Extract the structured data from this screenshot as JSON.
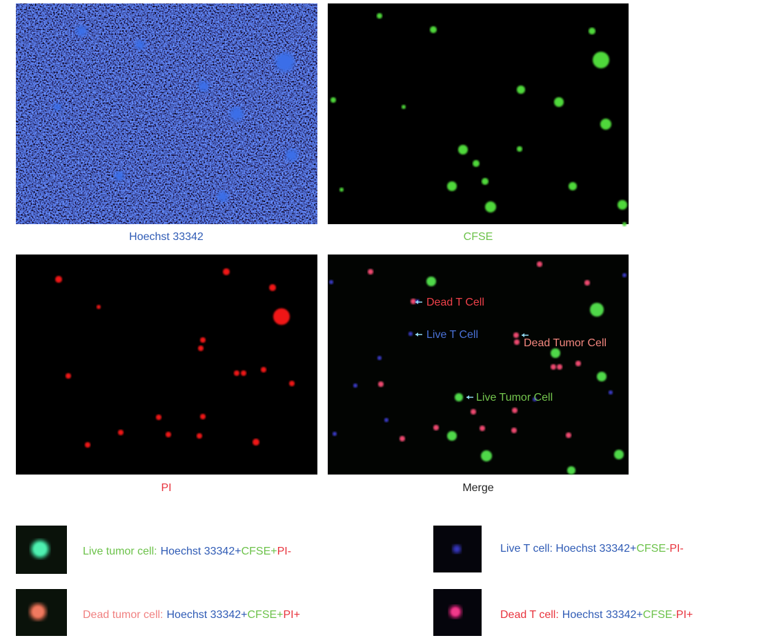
{
  "panels": [
    {
      "label": "Hoechst 33342",
      "color": "#2f5bb5"
    },
    {
      "label": "CFSE",
      "color": "#6cc24a"
    },
    {
      "label": "PI",
      "color": "#e8323c"
    },
    {
      "label": "Merge",
      "color": "#222222"
    }
  ],
  "annotations": [
    {
      "text": "Dead T Cell",
      "color": "#f0414a"
    },
    {
      "text": "Live T Cell",
      "color": "#4a72d8"
    },
    {
      "text": "Dead Tumor Cell",
      "color": "#f4877f"
    },
    {
      "text": "Live Tumor Cell",
      "color": "#74c64e"
    }
  ],
  "legend": [
    {
      "segments": [
        {
          "text": "Live tumor cell:",
          "color": "#6cc24a"
        },
        {
          "text": "Hoechst 33342+",
          "color": "#2f5bb5"
        },
        {
          "text": "CFSE+",
          "color": "#6cc24a"
        },
        {
          "text": "PI-",
          "color": "#e8323c"
        }
      ]
    },
    {
      "segments": [
        {
          "text": "Live T cell: Hoechst 33342+",
          "color": "#2f5bb5"
        },
        {
          "text": "CFSE-",
          "color": "#6cc24a"
        },
        {
          "text": "PI-",
          "color": "#e8323c"
        }
      ]
    },
    {
      "segments": [
        {
          "text": "Dead tumor cell:",
          "color": "#f08080"
        },
        {
          "text": "Hoechst 33342+",
          "color": "#2f5bb5"
        },
        {
          "text": "CFSE+",
          "color": "#6cc24a"
        },
        {
          "text": "PI+",
          "color": "#e8323c"
        }
      ]
    },
    {
      "segments": [
        {
          "text": "Dead T cell:",
          "color": "#e8323c"
        },
        {
          "text": "Hoechst 33342+",
          "color": "#2f5bb5"
        },
        {
          "text": "CFSE-",
          "color": "#6cc24a"
        },
        {
          "text": "PI+",
          "color": "#e8323c"
        }
      ]
    }
  ]
}
